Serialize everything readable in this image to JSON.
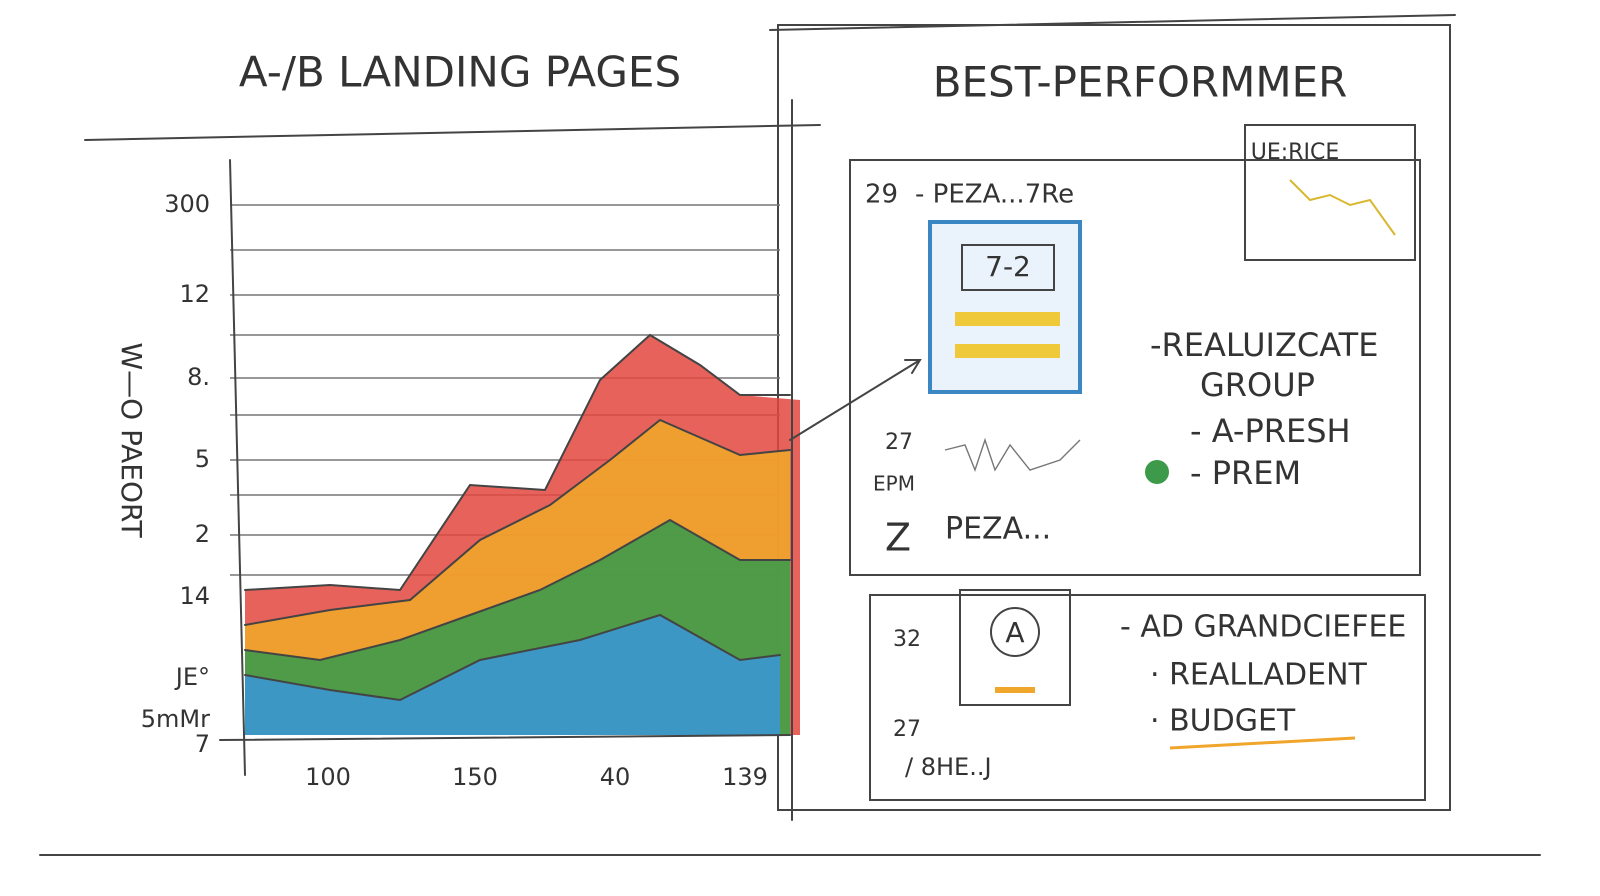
{
  "left_panel": {
    "title": "A-/B LANDING PAGES",
    "y_axis_label": "W—O PAEORT",
    "y_labels": [
      "300",
      "12",
      "8.",
      "5",
      "2",
      "14",
      "JE°",
      "5mMr",
      "7"
    ],
    "x_labels": [
      "100",
      "150",
      "40",
      "139"
    ]
  },
  "right_panel": {
    "title": "BEST-PERFORMMER",
    "card1": {
      "number": "29",
      "heading": "- PEZA...7Re",
      "badge": "7-2",
      "thumb_title": "UE:RICE",
      "actions": [
        "-REALUIZCATE",
        "GROUP",
        "- A-PRESH",
        "- PREM"
      ],
      "stat1": "27",
      "stat1_unit": "EPM",
      "stat2": "Z",
      "stat2_label": "PEZA..."
    },
    "card2": {
      "numbers": [
        "32",
        "27"
      ],
      "icon": "A",
      "actions": [
        "- AD GRANDCIEFEE",
        "· REALLADENT",
        "· BUDGET"
      ],
      "footer": "/ 8HE..J"
    }
  }
}
